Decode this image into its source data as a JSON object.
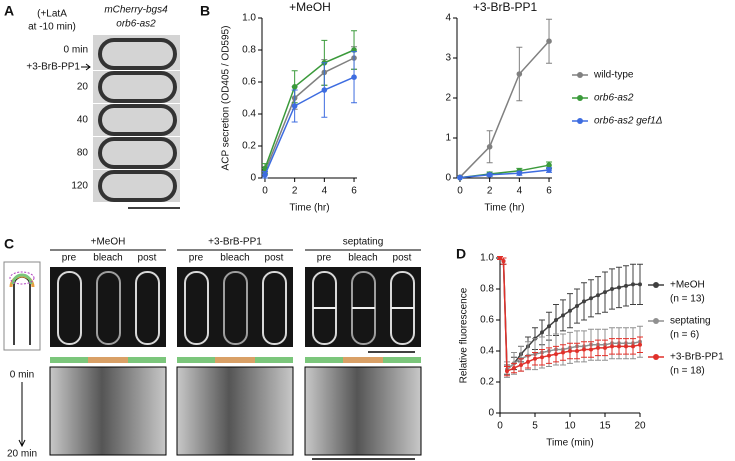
{
  "panel_labels": [
    "A",
    "B",
    "C",
    "D"
  ],
  "panel_a": {
    "treatment": [
      "(+LatA",
      "at -10 min)"
    ],
    "strain": [
      "mCherry-bgs4",
      "orb6-as2"
    ],
    "times": [
      "0 min",
      "20",
      "40",
      "80",
      "120"
    ],
    "drug": "+3-BrB-PP1"
  },
  "panel_c": {
    "conditions": [
      "+MeOH",
      "+3-BrB-PP1",
      "septating"
    ],
    "phases": [
      "pre",
      "bleach",
      "post"
    ],
    "kymo_start": "0 min",
    "kymo_end": "20 min"
  },
  "chart_data": [
    {
      "type": "line",
      "title": "+MeOH",
      "y_label": "ACP secretion (OD405 / OD595)",
      "x_label": "Time (hr)",
      "x": [
        0,
        2,
        4,
        6
      ],
      "xlim": [
        -0.2,
        6.2
      ],
      "xticks": [
        0,
        2,
        4,
        6
      ],
      "ylim": [
        0,
        1
      ],
      "yticks": [
        0,
        0.2,
        0.4,
        0.6,
        0.8,
        {
          "value": 1,
          "label": "1.0"
        }
      ],
      "series": [
        {
          "color": "#808080",
          "values": [
            0.04,
            0.5,
            0.66,
            0.75
          ],
          "errors": [
            0.02,
            0.07,
            0.08,
            0.07
          ]
        },
        {
          "color": "#3a9a3a",
          "values": [
            0.06,
            0.57,
            0.72,
            0.8
          ],
          "errors": [
            0.03,
            0.1,
            0.14,
            0.12
          ]
        },
        {
          "color": "#3d6ce0",
          "values": [
            0.02,
            0.45,
            0.55,
            0.63
          ],
          "errors": [
            0.02,
            0.1,
            0.17,
            0.16
          ]
        }
      ]
    },
    {
      "type": "line",
      "title": "+3-BrB-PP1",
      "x_label": "Time (hr)",
      "x": [
        0,
        2,
        4,
        6
      ],
      "xlim": [
        -0.2,
        6.2
      ],
      "xticks": [
        0,
        2,
        4,
        6
      ],
      "ylim": [
        0,
        4
      ],
      "yticks": [
        0,
        1,
        2,
        3,
        4
      ],
      "series": [
        {
          "name": "wild-type",
          "color": "#808080",
          "values": [
            0.02,
            0.78,
            2.6,
            3.42
          ],
          "errors": [
            0.02,
            0.4,
            0.67,
            0.55
          ]
        },
        {
          "name": "orb6-as2",
          "color": "#3a9a3a",
          "values": [
            0.01,
            0.1,
            0.18,
            0.32
          ],
          "errors": [
            0.01,
            0.05,
            0.06,
            0.08
          ]
        },
        {
          "name": "orb6-as2 gef1Δ",
          "color": "#3d6ce0",
          "values": [
            0.01,
            0.08,
            0.12,
            0.2
          ],
          "errors": [
            0.01,
            0.04,
            0.05,
            0.06
          ]
        }
      ]
    },
    {
      "type": "line",
      "y_label": "Relative fluorescence",
      "x_label": "Time (min)",
      "x": [
        0,
        0.5,
        1,
        2,
        3,
        4,
        5,
        6,
        7,
        8,
        9,
        10,
        11,
        12,
        13,
        14,
        15,
        16,
        17,
        18,
        19,
        20
      ],
      "xlim": [
        0,
        20
      ],
      "xticks": [
        0,
        5,
        10,
        15,
        20
      ],
      "ylim": [
        0,
        1
      ],
      "yticks": [
        0,
        0.2,
        0.4,
        0.6,
        0.8,
        {
          "value": 1,
          "label": "1.0"
        }
      ],
      "series": [
        {
          "name": "+MeOH",
          "count_label": "(n = 13)",
          "color": "#404040",
          "values": [
            1.0,
            0.98,
            0.28,
            0.32,
            0.38,
            0.43,
            0.48,
            0.52,
            0.56,
            0.6,
            0.63,
            0.66,
            0.69,
            0.72,
            0.74,
            0.76,
            0.78,
            0.8,
            0.81,
            0.82,
            0.83,
            0.83
          ],
          "errors": [
            0.01,
            0.02,
            0.03,
            0.04,
            0.05,
            0.06,
            0.07,
            0.08,
            0.09,
            0.1,
            0.1,
            0.11,
            0.11,
            0.12,
            0.12,
            0.12,
            0.13,
            0.13,
            0.13,
            0.13,
            0.13,
            0.13
          ]
        },
        {
          "name": "septating",
          "count_label": "(n = 6)",
          "color": "#909090",
          "values": [
            1.0,
            0.98,
            0.28,
            0.32,
            0.35,
            0.37,
            0.38,
            0.39,
            0.4,
            0.41,
            0.41,
            0.42,
            0.43,
            0.43,
            0.44,
            0.44,
            0.44,
            0.45,
            0.45,
            0.45,
            0.45,
            0.46
          ],
          "errors": [
            0.01,
            0.02,
            0.05,
            0.07,
            0.08,
            0.09,
            0.1,
            0.1,
            0.1,
            0.1,
            0.1,
            0.1,
            0.1,
            0.1,
            0.1,
            0.1,
            0.1,
            0.1,
            0.1,
            0.1,
            0.1,
            0.1
          ]
        },
        {
          "name": "+3-BrB-PP1",
          "count_label": "(n = 18)",
          "color": "#e0302a",
          "values": [
            1.0,
            0.98,
            0.27,
            0.29,
            0.31,
            0.33,
            0.35,
            0.36,
            0.37,
            0.38,
            0.39,
            0.4,
            0.4,
            0.41,
            0.41,
            0.42,
            0.42,
            0.43,
            0.43,
            0.43,
            0.43,
            0.44
          ],
          "errors": [
            0.01,
            0.02,
            0.03,
            0.03,
            0.04,
            0.04,
            0.04,
            0.05,
            0.05,
            0.05,
            0.05,
            0.05,
            0.05,
            0.05,
            0.05,
            0.05,
            0.05,
            0.05,
            0.05,
            0.05,
            0.05,
            0.05
          ]
        }
      ]
    }
  ]
}
